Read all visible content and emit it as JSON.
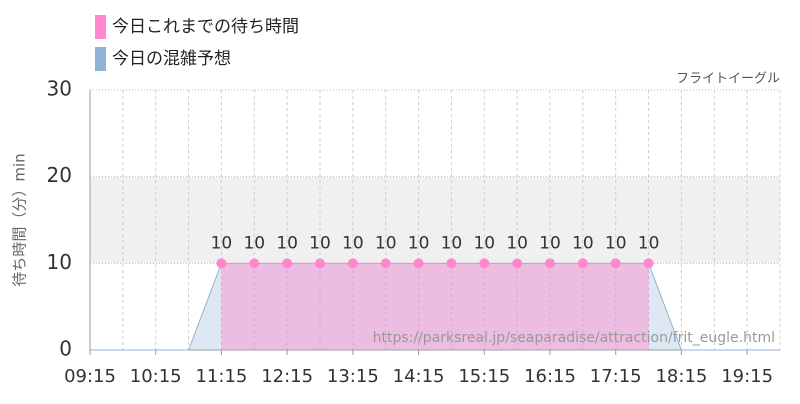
{
  "chart_data": {
    "type": "line",
    "subtitle": "フライトイーグル",
    "y_label": "待ち時間（分）min",
    "watermark": "https://parksreal.jp/seaparadise/attraction/frit_eugle.html",
    "xlim": [
      "09:15",
      "19:45"
    ],
    "xticks": [
      "09:15",
      "10:15",
      "11:15",
      "12:15",
      "13:15",
      "14:15",
      "15:15",
      "16:15",
      "17:15",
      "18:15",
      "19:15"
    ],
    "ylim": [
      0,
      30
    ],
    "yticks": [
      0,
      10,
      20,
      30
    ],
    "band": [
      10,
      20
    ],
    "grid": true,
    "series": [
      {
        "name": "今日これまでの待ち時間",
        "color": "#ff88cc",
        "points": true,
        "data_labels": true,
        "x": [
          "11:15",
          "11:45",
          "12:15",
          "12:45",
          "13:15",
          "13:45",
          "14:15",
          "14:45",
          "15:15",
          "15:45",
          "16:15",
          "16:45",
          "17:15",
          "17:45"
        ],
        "values": [
          10,
          10,
          10,
          10,
          10,
          10,
          10,
          10,
          10,
          10,
          10,
          10,
          10,
          10
        ]
      },
      {
        "name": "今日の混雑予想",
        "color": "#8fb3d4",
        "x": [
          "09:15",
          "09:45",
          "10:15",
          "10:45",
          "11:15",
          "11:45",
          "12:15",
          "12:45",
          "13:15",
          "13:45",
          "14:15",
          "14:45",
          "15:15",
          "15:45",
          "16:15",
          "16:45",
          "17:15",
          "17:45",
          "18:15",
          "18:45",
          "19:15",
          "19:45"
        ],
        "values": [
          0,
          0,
          0,
          0,
          10,
          10,
          10,
          10,
          10,
          10,
          10,
          10,
          10,
          10,
          10,
          10,
          10,
          10,
          0,
          0,
          0,
          0
        ]
      }
    ]
  }
}
